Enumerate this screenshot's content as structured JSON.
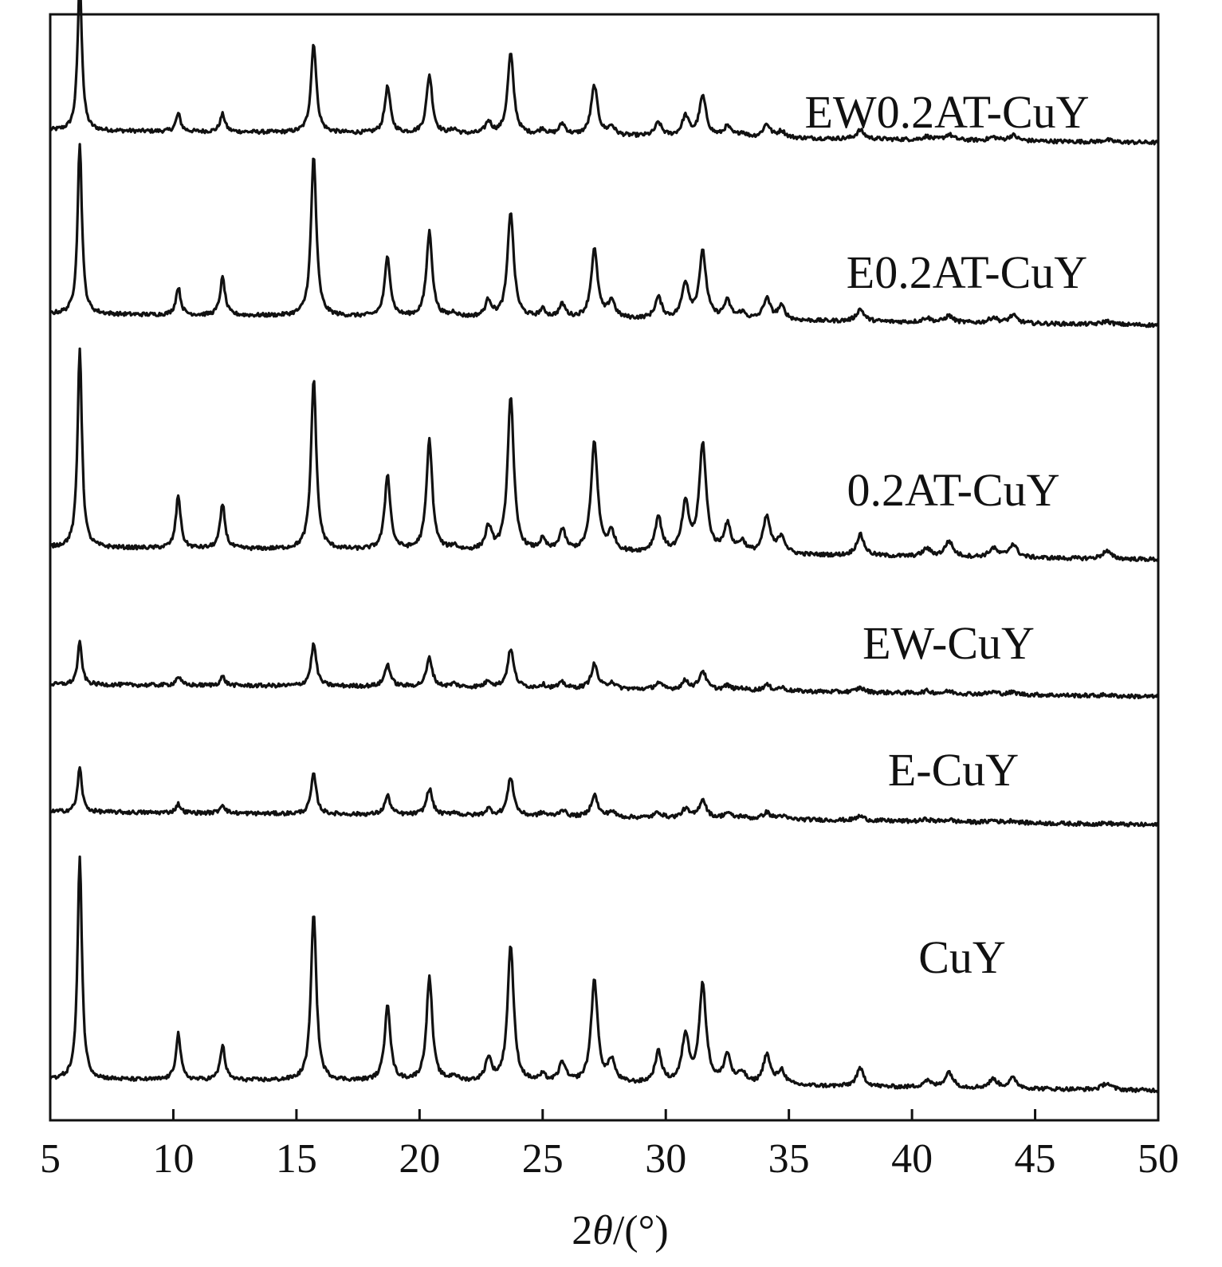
{
  "chart_data": {
    "type": "line",
    "xlabel": "2θ/(°)",
    "xlabel_parts": {
      "prefix": "2",
      "italic": "θ",
      "suffix": "/(°)"
    },
    "ylabel": "",
    "xlim": [
      5,
      50
    ],
    "ylim": [
      0,
      100
    ],
    "x_ticks": [
      5,
      10,
      15,
      20,
      25,
      30,
      35,
      40,
      45,
      50
    ],
    "grid": false,
    "legend": "inline labels",
    "line_color": "#111111",
    "peaks_2theta": [
      6.2,
      10.2,
      12.0,
      15.7,
      18.7,
      20.4,
      21.4,
      22.8,
      23.7,
      25.0,
      25.8,
      27.1,
      27.8,
      29.7,
      30.8,
      31.5,
      32.5,
      33.1,
      34.1,
      34.7,
      37.9,
      40.6,
      41.5,
      43.3,
      44.1,
      47.9
    ],
    "series": [
      {
        "name": "EW0.2AT-CuY",
        "offset": 87.9,
        "background": [
          [
            5,
            1.6
          ],
          [
            20,
            1.3
          ],
          [
            35,
            0.9
          ],
          [
            50,
            0.5
          ]
        ],
        "intensities": [
          13.6,
          1.6,
          1.6,
          8.1,
          4.2,
          5.3,
          0.4,
          1.1,
          7.3,
          0.5,
          1.0,
          4.5,
          0.8,
          1.2,
          1.8,
          3.6,
          0.9,
          0.4,
          1.2,
          0.6,
          0.8,
          0.3,
          0.5,
          0.3,
          0.5,
          0.2
        ]
      },
      {
        "name": "E0.2AT-CuY",
        "offset": 71.4,
        "background": [
          [
            5,
            1.5
          ],
          [
            20,
            1.2
          ],
          [
            35,
            0.9
          ],
          [
            50,
            0.5
          ]
        ],
        "intensities": [
          15.5,
          2.5,
          3.4,
          14.5,
          5.4,
          7.7,
          0.4,
          1.5,
          9.6,
          0.7,
          1.2,
          6.2,
          1.6,
          1.9,
          3.2,
          6.0,
          1.6,
          0.6,
          1.9,
          1.2,
          1.1,
          0.4,
          0.6,
          0.5,
          0.7,
          0.3
        ]
      },
      {
        "name": "0.2AT-CuY",
        "offset": 50.3,
        "background": [
          [
            5,
            1.5
          ],
          [
            20,
            1.2
          ],
          [
            35,
            0.8
          ],
          [
            50,
            0.4
          ]
        ],
        "intensities": [
          18.1,
          4.8,
          4.0,
          15.4,
          6.8,
          10.0,
          0.4,
          2.1,
          14.0,
          1.0,
          1.9,
          10.0,
          1.7,
          3.2,
          4.3,
          9.8,
          2.5,
          1.0,
          3.3,
          1.6,
          1.9,
          0.7,
          1.4,
          0.8,
          1.2,
          0.7
        ]
      },
      {
        "name": "EW-CuY",
        "offset": 38.0,
        "background": [
          [
            5,
            1.4
          ],
          [
            20,
            1.2
          ],
          [
            35,
            0.8
          ],
          [
            50,
            0.3
          ]
        ],
        "intensities": [
          3.8,
          0.8,
          0.8,
          3.8,
          2.0,
          2.6,
          0.3,
          0.6,
          3.5,
          0.3,
          0.5,
          2.2,
          0.6,
          0.6,
          0.8,
          1.7,
          0.4,
          0.2,
          0.5,
          0.3,
          0.4,
          0.2,
          0.2,
          0.2,
          0.2,
          0.1
        ]
      },
      {
        "name": "E-CuY",
        "offset": 26.3,
        "background": [
          [
            5,
            1.6
          ],
          [
            20,
            1.3
          ],
          [
            35,
            0.9
          ],
          [
            50,
            0.4
          ]
        ],
        "intensities": [
          4.0,
          0.8,
          0.8,
          3.6,
          1.7,
          2.4,
          0.3,
          0.6,
          3.5,
          0.3,
          0.6,
          2.0,
          0.5,
          0.5,
          0.8,
          1.7,
          0.5,
          0.2,
          0.6,
          0.3,
          0.4,
          0.2,
          0.2,
          0.2,
          0.2,
          0.1
        ]
      },
      {
        "name": "CuY",
        "offset": 2.3,
        "background": [
          [
            5,
            1.4
          ],
          [
            20,
            1.2
          ],
          [
            35,
            0.8
          ],
          [
            50,
            0.4
          ]
        ],
        "intensities": [
          20.3,
          4.2,
          3.1,
          15.3,
          7.0,
          9.4,
          0.5,
          2.1,
          12.4,
          0.6,
          1.8,
          9.3,
          2.0,
          2.8,
          4.3,
          8.9,
          2.6,
          1.0,
          2.7,
          1.3,
          1.6,
          0.6,
          1.4,
          0.8,
          0.9,
          0.6
        ]
      }
    ]
  }
}
